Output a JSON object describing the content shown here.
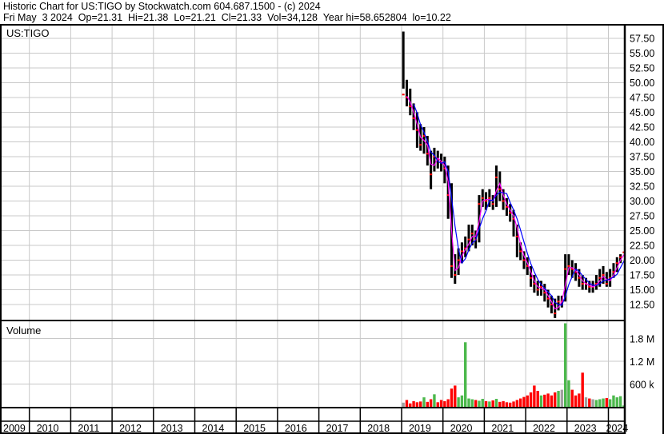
{
  "header": {
    "line1": "Historic Chart for US:TIGO by Stockwatch.com 604.687.1500 - (c) 2024",
    "line2": "Fri May  3 2024  Op=21.31  Hi=21.38  Lo=21.21  Cl=21.33  Vol=34,128  Year hi=58.652804  lo=10.22"
  },
  "chart_data": {
    "type": "candlestick",
    "symbol_label": "US:TIGO",
    "volume_label": "Volume",
    "price_ticks": [
      "57.50",
      "55.00",
      "52.50",
      "50.00",
      "47.50",
      "45.00",
      "42.50",
      "40.00",
      "37.50",
      "35.00",
      "32.50",
      "30.00",
      "27.50",
      "25.00",
      "22.50",
      "20.00",
      "17.50",
      "15.00",
      "12.50"
    ],
    "price_range": [
      10,
      59
    ],
    "volume_ticks": [
      "1.8 M",
      "1.2 M",
      "600 k"
    ],
    "volume_tick_values": [
      1800000,
      1200000,
      600000
    ],
    "volume_range": [
      0,
      2400000
    ],
    "year_labels": [
      "2009",
      "2010",
      "2011",
      "2012",
      "2013",
      "2014",
      "2015",
      "2016",
      "2017",
      "2018",
      "2019",
      "2020",
      "2021",
      "2022",
      "2023",
      "2024"
    ],
    "x_range_years": [
      2009,
      2024.42
    ],
    "grid": true,
    "colors": {
      "up": "#4cb84c",
      "down": "#ff0000",
      "neutral": "#a0a0a0",
      "candle": "#000000",
      "ma_short": "#ff00ff",
      "ma_long": "#0000ff",
      "grid": "#c8c8c8"
    },
    "periods": [
      "2019-01",
      "2019-02",
      "2019-03",
      "2019-04",
      "2019-05",
      "2019-06",
      "2019-07",
      "2019-08",
      "2019-09",
      "2019-10",
      "2019-11",
      "2019-12",
      "2020-01",
      "2020-02",
      "2020-03",
      "2020-04",
      "2020-05",
      "2020-06",
      "2020-07",
      "2020-08",
      "2020-09",
      "2020-10",
      "2020-11",
      "2020-12",
      "2021-01",
      "2021-02",
      "2021-03",
      "2021-04",
      "2021-05",
      "2021-06",
      "2021-07",
      "2021-08",
      "2021-09",
      "2021-10",
      "2021-11",
      "2021-12",
      "2022-01",
      "2022-02",
      "2022-03",
      "2022-04",
      "2022-05",
      "2022-06",
      "2022-07",
      "2022-08",
      "2022-09",
      "2022-10",
      "2022-11",
      "2022-12",
      "2023-01",
      "2023-02",
      "2023-03",
      "2023-04",
      "2023-05",
      "2023-06",
      "2023-07",
      "2023-08",
      "2023-09",
      "2023-10",
      "2023-11",
      "2023-12",
      "2024-01",
      "2024-02",
      "2024-03",
      "2024-04",
      "2024-05"
    ],
    "close": [
      48,
      47.5,
      46,
      44,
      42,
      39.5,
      41,
      38,
      34.5,
      37.5,
      37,
      36.5,
      35.5,
      31,
      19,
      17.5,
      20,
      21.5,
      22,
      23.5,
      24.5,
      23.5,
      29.5,
      30.5,
      30,
      30.5,
      29.5,
      34,
      32,
      30,
      29,
      28,
      27,
      24,
      21.5,
      20,
      19,
      17,
      16,
      15,
      15.5,
      14.5,
      13.5,
      12.5,
      11,
      13,
      13,
      18.5,
      19,
      18.5,
      18,
      17,
      16,
      16,
      15.5,
      15.5,
      16,
      17,
      17.5,
      16,
      17,
      18,
      19.5,
      20.5,
      21.33
    ],
    "high": [
      58.65,
      50.5,
      49,
      46.5,
      45,
      43,
      42.5,
      41,
      38.5,
      39,
      38.5,
      38,
      37.5,
      36,
      33,
      21,
      22,
      23,
      24,
      26,
      26,
      25,
      31,
      32,
      31.5,
      32,
      31,
      36,
      35,
      32,
      30.5,
      29.5,
      28.5,
      26,
      23,
      21.5,
      20.5,
      19,
      17.5,
      16.5,
      16.5,
      16,
      15,
      14,
      13.5,
      14,
      14,
      21,
      21,
      20,
      19.5,
      18.5,
      17.5,
      17,
      16.5,
      16.5,
      17.5,
      18.5,
      19,
      18,
      18.5,
      19.5,
      20.5,
      21,
      21.38
    ],
    "low": [
      49,
      46,
      44.5,
      42,
      39,
      38.5,
      38,
      36,
      32,
      35,
      35.5,
      35,
      33,
      27,
      17,
      16,
      17.5,
      19.5,
      20.5,
      21.5,
      22.5,
      22,
      23,
      29,
      28.5,
      29,
      28.5,
      29,
      30,
      28.5,
      27.5,
      26.5,
      24,
      20.5,
      20,
      18.5,
      17.5,
      15.5,
      14.5,
      14,
      14,
      13,
      12,
      11,
      10.22,
      11.5,
      12,
      13,
      17.5,
      17,
      16.5,
      15.5,
      15,
      15,
      14.5,
      14.5,
      15,
      15.5,
      16,
      15.5,
      15.5,
      17,
      18,
      19.5,
      21.21
    ],
    "volume": [
      110000,
      180000,
      90000,
      150000,
      120000,
      140000,
      250000,
      130000,
      200000,
      330000,
      120000,
      180000,
      150000,
      200000,
      480000,
      560000,
      250000,
      300000,
      1700000,
      220000,
      200000,
      180000,
      160000,
      210000,
      150000,
      140000,
      170000,
      210000,
      130000,
      150000,
      120000,
      110000,
      140000,
      180000,
      220000,
      260000,
      300000,
      380000,
      560000,
      420000,
      300000,
      320000,
      350000,
      300000,
      380000,
      420000,
      450000,
      2200000,
      700000,
      450000,
      300000,
      350000,
      900000,
      250000,
      220000,
      200000,
      180000,
      200000,
      220000,
      230000,
      200000,
      300000,
      250000,
      280000,
      34128
    ]
  }
}
